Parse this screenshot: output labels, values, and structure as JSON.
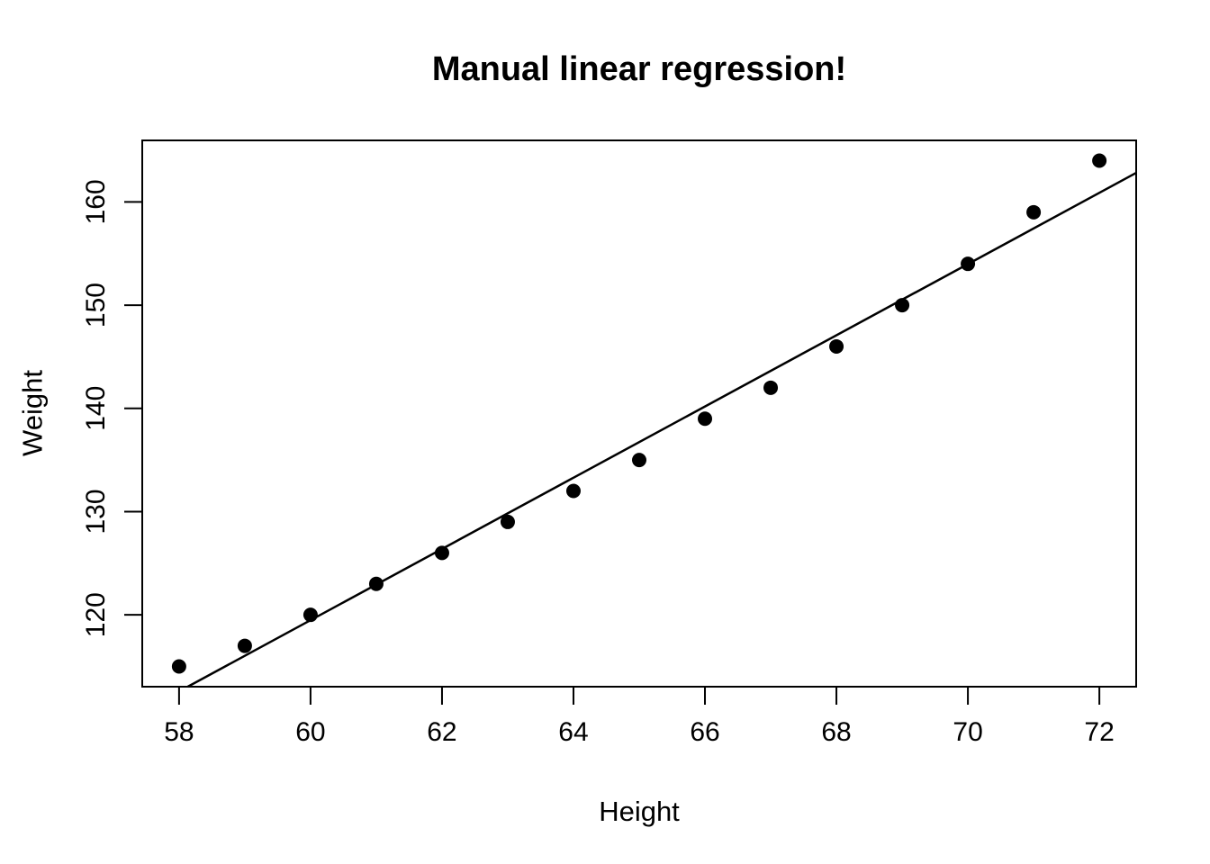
{
  "figure": {
    "background_color": "#ffffff",
    "foreground_color": "#000000"
  },
  "chart_data": {
    "type": "scatter",
    "title": "Manual linear regression!",
    "xlabel": "Height",
    "ylabel": "Weight",
    "x": [
      58,
      59,
      60,
      61,
      62,
      63,
      64,
      65,
      66,
      67,
      68,
      69,
      70,
      71,
      72
    ],
    "y": [
      115,
      117,
      120,
      123,
      126,
      129,
      132,
      135,
      139,
      142,
      146,
      150,
      154,
      159,
      164
    ],
    "x_ticks": [
      58,
      60,
      62,
      64,
      66,
      68,
      70,
      72
    ],
    "y_ticks": [
      120,
      130,
      140,
      150,
      160
    ],
    "xlim": [
      57.44,
      72.56
    ],
    "ylim": [
      113.04,
      165.96
    ],
    "grid": false,
    "legend": "none",
    "point_color": "#000000",
    "line_color": "#000000",
    "fit_line": {
      "type": "linear",
      "slope": 3.45,
      "intercept": -87.517
    }
  }
}
